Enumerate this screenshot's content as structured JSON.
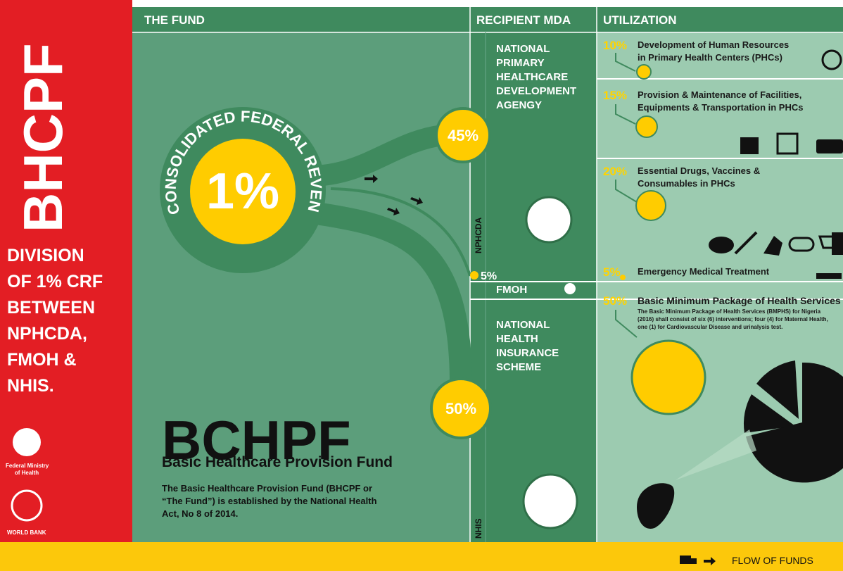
{
  "sidebar": {
    "acronym": "BHCPF",
    "heading": [
      "DIVISION",
      "OF 1% CRF",
      "BETWEEN",
      "NPHCDA,",
      "FMOH &",
      "NHIS."
    ],
    "logos": [
      [
        "Federal Ministry",
        "of Health"
      ],
      [
        "WORLD BANK"
      ]
    ]
  },
  "header": {
    "columns": [
      "THE FUND",
      "RECIPIENT MDA",
      "UTILIZATION"
    ]
  },
  "fund": {
    "arc_label": "CONSOLIDATED FEDERAL REVENUE",
    "share": "1%",
    "splits": [
      "45%",
      "5%",
      "50%"
    ],
    "title": "BCHPF",
    "subtitle": "Basic Healthcare Provision Fund",
    "description": [
      "The Basic Healthcare Provision Fund (BHCPF or",
      "“The Fund”) is established by the National Health",
      "Act, No 8 of 2014."
    ]
  },
  "recipients": [
    {
      "name": [
        "NATIONAL",
        "PRIMARY",
        "HEALTHCARE",
        "DEVELOPMENT",
        "AGENGY"
      ],
      "code": "NPHCDA"
    },
    {
      "name": [
        "FMOH"
      ]
    },
    {
      "name": [
        "NATIONAL",
        "HEALTH",
        "INSURANCE",
        "SCHEME"
      ],
      "code": "NHIS"
    }
  ],
  "utilization": [
    {
      "percent": "10%",
      "label": [
        "Development of Human Resources",
        "in Primary Health Centers (PHCs)"
      ]
    },
    {
      "percent": "15%",
      "label": [
        "Provision & Maintenance of Facilities,",
        "Equipments & Transportation in PHCs"
      ]
    },
    {
      "percent": "20%",
      "label": [
        "Essential Drugs, Vaccines &",
        "Consumables in PHCs"
      ]
    },
    {
      "percent": "5%",
      "label": [
        "Emergency Medical Treatment"
      ]
    },
    {
      "percent": "50%",
      "label": [
        "Basic Minimum Package of Health Services"
      ],
      "description": [
        "The Basic Minimum Package of Health Services (BMPHS) for Nigeria",
        "(2016) shall consist of six (6) interventions; four (4) for Maternal Health,",
        "one (1) for Cardiovascular Disease and urinalysis test."
      ]
    }
  ],
  "footer": {
    "legend": "FLOW OF FUNDS"
  }
}
